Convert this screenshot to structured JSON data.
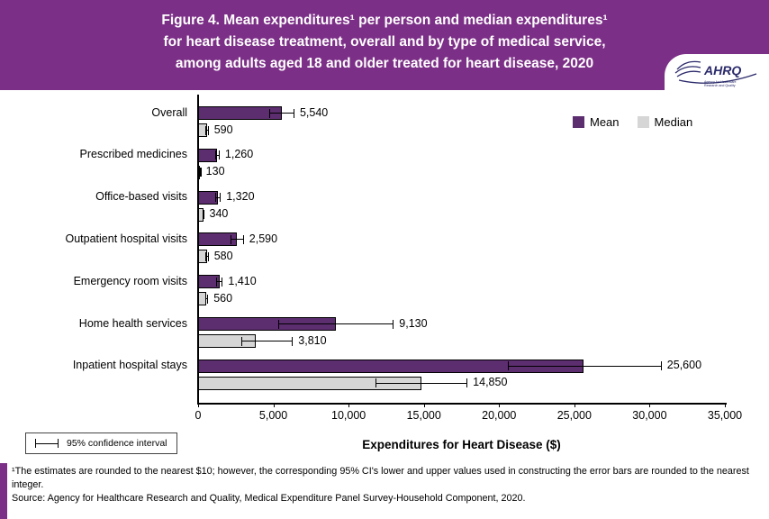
{
  "header": {
    "title_lines": [
      "Figure 4. Mean expenditures¹ per person and median expenditures¹",
      "for heart disease treatment, overall and by type of medical service,",
      "among adults aged 18 and older treated for heart disease, 2020"
    ],
    "logo": {
      "name": "AHRQ",
      "tagline": "Agency for Healthcare Research and Quality"
    },
    "background_color": "#7c2f87"
  },
  "chart_data": {
    "type": "bar",
    "orientation": "horizontal",
    "title": "Figure 4. Mean expenditures per person and median expenditures for heart disease treatment, overall and by type of medical service, among adults aged 18 and older treated for heart disease, 2020",
    "categories": [
      "Overall",
      "Prescribed medicines",
      "Office-based visits",
      "Outpatient hospital visits",
      "Emergency room visits",
      "Home health services",
      "Inpatient hospital stays"
    ],
    "series": [
      {
        "name": "Mean",
        "color": "#5c2d6f",
        "values": [
          5540,
          1260,
          1320,
          2590,
          1410,
          9130,
          25600
        ],
        "ci_low_estimated": [
          4700,
          1110,
          1140,
          2160,
          1190,
          5300,
          20600
        ],
        "ci_high_estimated": [
          6400,
          1430,
          1510,
          3040,
          1640,
          13000,
          30800
        ]
      },
      {
        "name": "Median",
        "color": "#d6d6d6",
        "values": [
          590,
          130,
          340,
          580,
          560,
          3810,
          14850
        ],
        "ci_low_estimated": [
          480,
          110,
          300,
          470,
          460,
          2850,
          11800
        ],
        "ci_high_estimated": [
          700,
          160,
          390,
          700,
          670,
          6300,
          17900
        ]
      }
    ],
    "xlabel": "Expenditures for Heart Disease ($)",
    "xlim": [
      0,
      35000
    ],
    "xticks": [
      0,
      5000,
      10000,
      15000,
      20000,
      25000,
      30000,
      35000
    ],
    "legend_position": "top-right",
    "grid": false,
    "error_bars": true,
    "ci_note": "95% confidence interval"
  },
  "footer": {
    "note1": "¹The estimates are rounded to the nearest $10; however, the corresponding 95% CI's lower and upper values used in constructing the error bars are rounded to the nearest integer.",
    "source": "Source: Agency for Healthcare Research and Quality, Medical Expenditure Panel Survey-Household Component, 2020."
  }
}
